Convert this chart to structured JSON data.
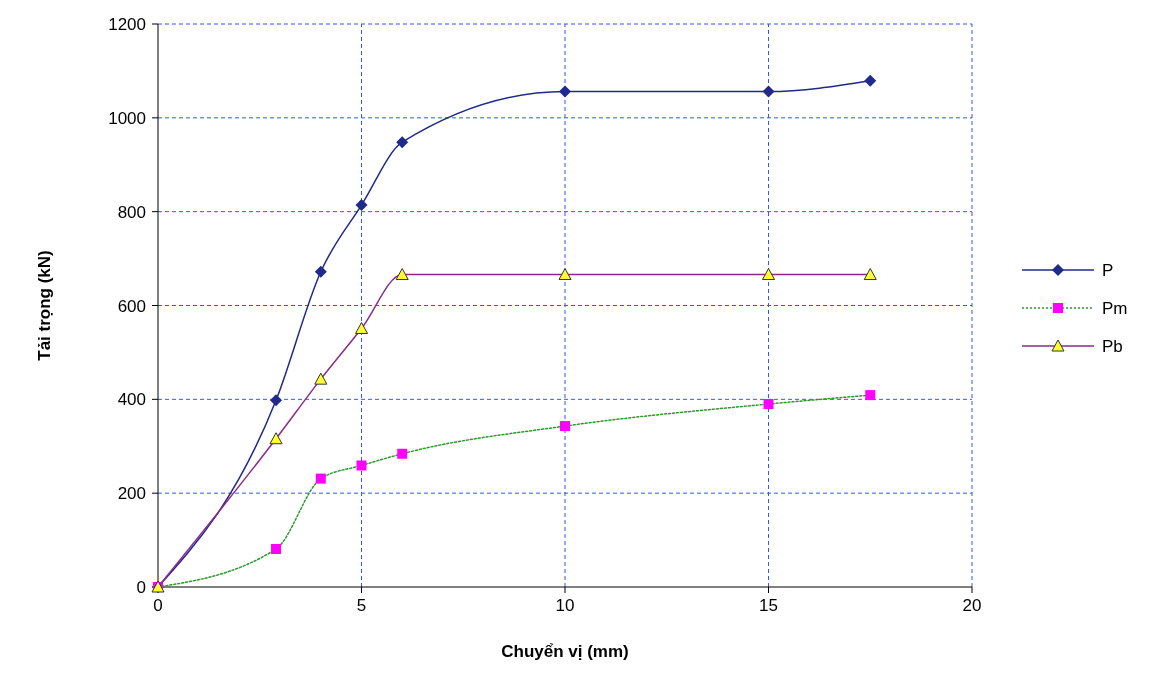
{
  "chart_data": {
    "type": "line",
    "xlabel": "Chuyển vị (mm)",
    "ylabel": "Tải trọng (kN)",
    "x": [
      0,
      2.9,
      4,
      5,
      6,
      10,
      15,
      17.5
    ],
    "series": [
      {
        "name": "P",
        "color": "#1f2a8a",
        "marker": "diamond",
        "line_style": "solid",
        "values": [
          0,
          398,
          672,
          814,
          948,
          1056,
          1056,
          1079
        ]
      },
      {
        "name": "Pm",
        "color": "#2e9a2e",
        "colors": [
          "#ff00ff",
          "#ff00ff",
          "#ff00ff",
          "#ff00ff",
          "#ff00ff",
          "#ff00ff",
          "#ff00ff",
          "#ff00ff"
        ],
        "marker": "square",
        "line_style": "dotted",
        "values": [
          0,
          81,
          231,
          259,
          284,
          343,
          390,
          409
        ]
      },
      {
        "name": "Pb",
        "color": "#8b2a8b",
        "colors": [
          "#ffff33",
          "#ffff33",
          "#ffff33",
          "#ffff33",
          "#ffff33",
          "#ffff33",
          "#ffff33",
          "#ffff33"
        ],
        "marker": "triangle",
        "line_style": "solid",
        "values": [
          0,
          316,
          443,
          551,
          666,
          666,
          666,
          666
        ]
      }
    ],
    "xlim": [
      0,
      20
    ],
    "xticks": [
      0,
      5,
      10,
      15,
      20
    ],
    "ylim": [
      0,
      1200
    ],
    "yticks": [
      0,
      200,
      400,
      600,
      800,
      1000,
      1200
    ],
    "grid": true,
    "legend": "right"
  }
}
